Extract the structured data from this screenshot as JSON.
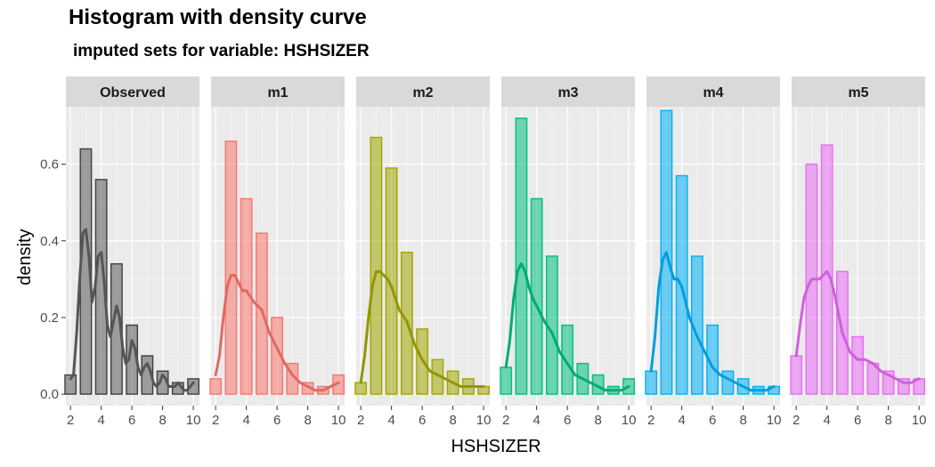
{
  "chart_data": {
    "type": "bar",
    "title": "Histogram with density curve",
    "subtitle": "imputed sets for variable:  HSHSIZER",
    "xlabel": "HSHSIZER",
    "ylabel": "density",
    "xlim": [
      1.7,
      10.4
    ],
    "ylim": [
      -0.03,
      0.75
    ],
    "x_ticks": [
      2,
      4,
      6,
      8,
      10
    ],
    "y_ticks": [
      0.0,
      0.2,
      0.4,
      0.6
    ],
    "y_tick_labels": [
      "0.0",
      "0.2",
      "0.4",
      "0.6"
    ],
    "grid": true,
    "bin_centers": [
      2,
      3,
      4,
      5,
      6,
      7,
      8,
      9,
      10
    ],
    "panels": [
      {
        "label": "Observed",
        "color": "#595959",
        "values": [
          0.05,
          0.64,
          0.56,
          0.34,
          0.18,
          0.1,
          0.06,
          0.03,
          0.04
        ],
        "density_x": [
          2.0,
          2.2,
          2.4,
          2.6,
          2.8,
          3.0,
          3.2,
          3.4,
          3.6,
          3.8,
          4.0,
          4.2,
          4.4,
          4.6,
          4.8,
          5.0,
          5.2,
          5.4,
          5.6,
          5.8,
          6.0,
          6.2,
          6.4,
          6.6,
          6.8,
          7.0,
          7.2,
          7.4,
          7.6,
          7.8,
          8.0,
          8.2,
          8.4,
          8.6,
          8.8,
          9.0,
          9.2,
          9.4,
          9.6,
          9.8,
          10.0
        ],
        "density_y": [
          0.04,
          0.05,
          0.16,
          0.3,
          0.42,
          0.43,
          0.36,
          0.24,
          0.28,
          0.36,
          0.37,
          0.29,
          0.18,
          0.15,
          0.19,
          0.23,
          0.2,
          0.12,
          0.08,
          0.09,
          0.14,
          0.12,
          0.07,
          0.05,
          0.07,
          0.08,
          0.06,
          0.03,
          0.02,
          0.03,
          0.05,
          0.04,
          0.02,
          0.02,
          0.02,
          0.03,
          0.02,
          0.01,
          0.01,
          0.02,
          0.03
        ]
      },
      {
        "label": "m1",
        "color": "#F8766D",
        "values": [
          0.04,
          0.66,
          0.51,
          0.42,
          0.2,
          0.08,
          0.03,
          0.02,
          0.05
        ],
        "density_x": [
          2.0,
          2.25,
          2.5,
          2.75,
          3.0,
          3.25,
          3.5,
          3.75,
          4.0,
          4.5,
          5.0,
          5.5,
          6.0,
          6.5,
          7.0,
          7.5,
          8.0,
          8.5,
          9.0,
          9.5,
          10.0
        ],
        "density_y": [
          0.05,
          0.1,
          0.2,
          0.28,
          0.31,
          0.31,
          0.29,
          0.27,
          0.27,
          0.24,
          0.22,
          0.16,
          0.12,
          0.08,
          0.05,
          0.03,
          0.02,
          0.01,
          0.01,
          0.02,
          0.03
        ]
      },
      {
        "label": "m2",
        "color": "#A3A500",
        "values": [
          0.03,
          0.67,
          0.59,
          0.37,
          0.17,
          0.09,
          0.06,
          0.04,
          0.02
        ],
        "density_x": [
          2.0,
          2.25,
          2.5,
          2.75,
          3.0,
          3.25,
          3.5,
          3.75,
          4.0,
          4.5,
          5.0,
          5.5,
          6.0,
          6.5,
          7.0,
          7.5,
          8.0,
          8.5,
          9.0,
          9.5,
          10.0
        ],
        "density_y": [
          0.03,
          0.1,
          0.2,
          0.28,
          0.32,
          0.32,
          0.31,
          0.3,
          0.28,
          0.22,
          0.19,
          0.13,
          0.09,
          0.06,
          0.05,
          0.04,
          0.03,
          0.02,
          0.02,
          0.02,
          0.02
        ]
      },
      {
        "label": "m3",
        "color": "#00BF7D",
        "values": [
          0.07,
          0.72,
          0.51,
          0.36,
          0.18,
          0.08,
          0.05,
          0.02,
          0.04
        ],
        "density_x": [
          2.0,
          2.25,
          2.5,
          2.75,
          3.0,
          3.25,
          3.5,
          3.75,
          4.0,
          4.5,
          5.0,
          5.5,
          6.0,
          6.5,
          7.0,
          7.5,
          8.0,
          8.5,
          9.0,
          9.5,
          10.0
        ],
        "density_y": [
          0.07,
          0.14,
          0.25,
          0.32,
          0.34,
          0.32,
          0.28,
          0.25,
          0.23,
          0.19,
          0.16,
          0.11,
          0.08,
          0.05,
          0.04,
          0.03,
          0.02,
          0.01,
          0.01,
          0.01,
          0.02
        ]
      },
      {
        "label": "m4",
        "color": "#00B0F6",
        "values": [
          0.06,
          0.74,
          0.57,
          0.36,
          0.18,
          0.06,
          0.04,
          0.02,
          0.02
        ],
        "density_x": [
          2.0,
          2.25,
          2.5,
          2.75,
          3.0,
          3.25,
          3.5,
          3.75,
          4.0,
          4.5,
          5.0,
          5.5,
          6.0,
          6.5,
          7.0,
          7.5,
          8.0,
          8.5,
          9.0,
          9.5,
          10.0
        ],
        "density_y": [
          0.06,
          0.15,
          0.28,
          0.35,
          0.37,
          0.33,
          0.3,
          0.3,
          0.28,
          0.2,
          0.15,
          0.11,
          0.07,
          0.05,
          0.04,
          0.03,
          0.02,
          0.01,
          0.01,
          0.01,
          0.02
        ]
      },
      {
        "label": "m5",
        "color": "#E76BF3",
        "values": [
          0.1,
          0.6,
          0.65,
          0.32,
          0.15,
          0.08,
          0.06,
          0.04,
          0.04
        ],
        "density_x": [
          2.0,
          2.25,
          2.5,
          2.75,
          3.0,
          3.25,
          3.5,
          3.75,
          4.0,
          4.25,
          4.5,
          5.0,
          5.5,
          6.0,
          6.5,
          7.0,
          7.5,
          8.0,
          8.5,
          9.0,
          9.5,
          10.0
        ],
        "density_y": [
          0.1,
          0.18,
          0.25,
          0.28,
          0.3,
          0.3,
          0.3,
          0.31,
          0.32,
          0.3,
          0.26,
          0.16,
          0.11,
          0.09,
          0.09,
          0.08,
          0.06,
          0.05,
          0.04,
          0.03,
          0.03,
          0.04
        ]
      }
    ]
  }
}
